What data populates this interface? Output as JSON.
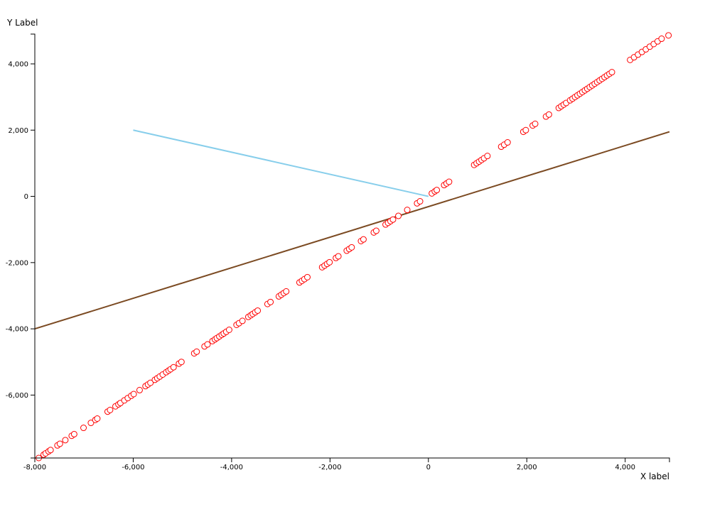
{
  "chart_data": {
    "type": "scatter",
    "xlabel": "X label",
    "ylabel": "Y Label",
    "xlim": [
      -8000,
      4900
    ],
    "ylim": [
      -7900,
      4900
    ],
    "x_ticks": [
      {
        "value": -8000,
        "label": "-8,000"
      },
      {
        "value": -6000,
        "label": "-6,000"
      },
      {
        "value": -4000,
        "label": "-4,000"
      },
      {
        "value": -2000,
        "label": "-2,000"
      },
      {
        "value": 0,
        "label": "0"
      },
      {
        "value": 2000,
        "label": "2,000"
      },
      {
        "value": 4000,
        "label": "4,000"
      }
    ],
    "y_ticks": [
      {
        "value": 4000,
        "label": "4,000"
      },
      {
        "value": 2000,
        "label": "2,000"
      },
      {
        "value": 0,
        "label": "0"
      },
      {
        "value": -2000,
        "label": "-2,000"
      },
      {
        "value": -4000,
        "label": "-4,000"
      },
      {
        "value": -6000,
        "label": "-6,000"
      }
    ],
    "grid": false,
    "lines": [
      {
        "color": "#87CEEB",
        "points": [
          [
            -6000,
            2000
          ],
          [
            0,
            0
          ]
        ]
      },
      {
        "color": "#7B4A22",
        "points": [
          [
            -8000,
            -4000
          ],
          [
            4900,
            1950
          ]
        ]
      }
    ],
    "scatter": {
      "color": "#FF0000",
      "fill": "#FFFFFF",
      "points": [
        [
          -7920,
          -7900
        ],
        [
          -7820,
          -7800
        ],
        [
          -7780,
          -7760
        ],
        [
          -7720,
          -7700
        ],
        [
          -7680,
          -7660
        ],
        [
          -7540,
          -7520
        ],
        [
          -7490,
          -7470
        ],
        [
          -7380,
          -7360
        ],
        [
          -7250,
          -7230
        ],
        [
          -7200,
          -7180
        ],
        [
          -7010,
          -6990
        ],
        [
          -6860,
          -6840
        ],
        [
          -6770,
          -6750
        ],
        [
          -6730,
          -6710
        ],
        [
          -6520,
          -6500
        ],
        [
          -6470,
          -6450
        ],
        [
          -6360,
          -6340
        ],
        [
          -6300,
          -6280
        ],
        [
          -6260,
          -6240
        ],
        [
          -6180,
          -6160
        ],
        [
          -6110,
          -6090
        ],
        [
          -6040,
          -6020
        ],
        [
          -5990,
          -5970
        ],
        [
          -5870,
          -5850
        ],
        [
          -5750,
          -5730
        ],
        [
          -5700,
          -5680
        ],
        [
          -5650,
          -5630
        ],
        [
          -5560,
          -5540
        ],
        [
          -5510,
          -5490
        ],
        [
          -5460,
          -5440
        ],
        [
          -5400,
          -5380
        ],
        [
          -5330,
          -5310
        ],
        [
          -5280,
          -5260
        ],
        [
          -5240,
          -5220
        ],
        [
          -5180,
          -5160
        ],
        [
          -5070,
          -5050
        ],
        [
          -5020,
          -5000
        ],
        [
          -4760,
          -4740
        ],
        [
          -4710,
          -4690
        ],
        [
          -4550,
          -4530
        ],
        [
          -4490,
          -4470
        ],
        [
          -4390,
          -4370
        ],
        [
          -4340,
          -4320
        ],
        [
          -4300,
          -4280
        ],
        [
          -4250,
          -4230
        ],
        [
          -4200,
          -4180
        ],
        [
          -4160,
          -4140
        ],
        [
          -4110,
          -4090
        ],
        [
          -4050,
          -4030
        ],
        [
          -3900,
          -3880
        ],
        [
          -3850,
          -3830
        ],
        [
          -3780,
          -3760
        ],
        [
          -3660,
          -3640
        ],
        [
          -3610,
          -3590
        ],
        [
          -3570,
          -3550
        ],
        [
          -3520,
          -3500
        ],
        [
          -3470,
          -3450
        ],
        [
          -3270,
          -3250
        ],
        [
          -3210,
          -3190
        ],
        [
          -3040,
          -3020
        ],
        [
          -2990,
          -2970
        ],
        [
          -2940,
          -2920
        ],
        [
          -2890,
          -2870
        ],
        [
          -2620,
          -2600
        ],
        [
          -2570,
          -2550
        ],
        [
          -2520,
          -2500
        ],
        [
          -2460,
          -2440
        ],
        [
          -2160,
          -2140
        ],
        [
          -2110,
          -2090
        ],
        [
          -2060,
          -2040
        ],
        [
          -2010,
          -1990
        ],
        [
          -1880,
          -1860
        ],
        [
          -1830,
          -1810
        ],
        [
          -1660,
          -1640
        ],
        [
          -1610,
          -1590
        ],
        [
          -1560,
          -1540
        ],
        [
          -1370,
          -1350
        ],
        [
          -1320,
          -1300
        ],
        [
          -1110,
          -1090
        ],
        [
          -1060,
          -1040
        ],
        [
          -870,
          -850
        ],
        [
          -820,
          -800
        ],
        [
          -770,
          -750
        ],
        [
          -720,
          -700
        ],
        [
          -610,
          -590
        ],
        [
          -430,
          -410
        ],
        [
          -230,
          -210
        ],
        [
          -170,
          -150
        ],
        [
          70,
          90
        ],
        [
          130,
          150
        ],
        [
          170,
          190
        ],
        [
          320,
          340
        ],
        [
          370,
          390
        ],
        [
          420,
          440
        ],
        [
          930,
          950
        ],
        [
          980,
          1000
        ],
        [
          1030,
          1050
        ],
        [
          1080,
          1100
        ],
        [
          1130,
          1150
        ],
        [
          1200,
          1220
        ],
        [
          1480,
          1500
        ],
        [
          1540,
          1560
        ],
        [
          1610,
          1630
        ],
        [
          1930,
          1950
        ],
        [
          1980,
          2000
        ],
        [
          2120,
          2140
        ],
        [
          2170,
          2190
        ],
        [
          2390,
          2410
        ],
        [
          2450,
          2470
        ],
        [
          2650,
          2670
        ],
        [
          2700,
          2720
        ],
        [
          2750,
          2770
        ],
        [
          2800,
          2820
        ],
        [
          2880,
          2900
        ],
        [
          2930,
          2950
        ],
        [
          2980,
          3000
        ],
        [
          3030,
          3050
        ],
        [
          3080,
          3100
        ],
        [
          3130,
          3150
        ],
        [
          3180,
          3200
        ],
        [
          3230,
          3250
        ],
        [
          3280,
          3300
        ],
        [
          3330,
          3350
        ],
        [
          3380,
          3400
        ],
        [
          3430,
          3450
        ],
        [
          3480,
          3500
        ],
        [
          3530,
          3550
        ],
        [
          3580,
          3600
        ],
        [
          3630,
          3650
        ],
        [
          3680,
          3700
        ],
        [
          3730,
          3750
        ],
        [
          4100,
          4120
        ],
        [
          4180,
          4200
        ],
        [
          4260,
          4280
        ],
        [
          4340,
          4360
        ],
        [
          4420,
          4440
        ],
        [
          4500,
          4520
        ],
        [
          4580,
          4600
        ],
        [
          4660,
          4680
        ],
        [
          4740,
          4760
        ],
        [
          4880,
          4860
        ]
      ]
    }
  }
}
